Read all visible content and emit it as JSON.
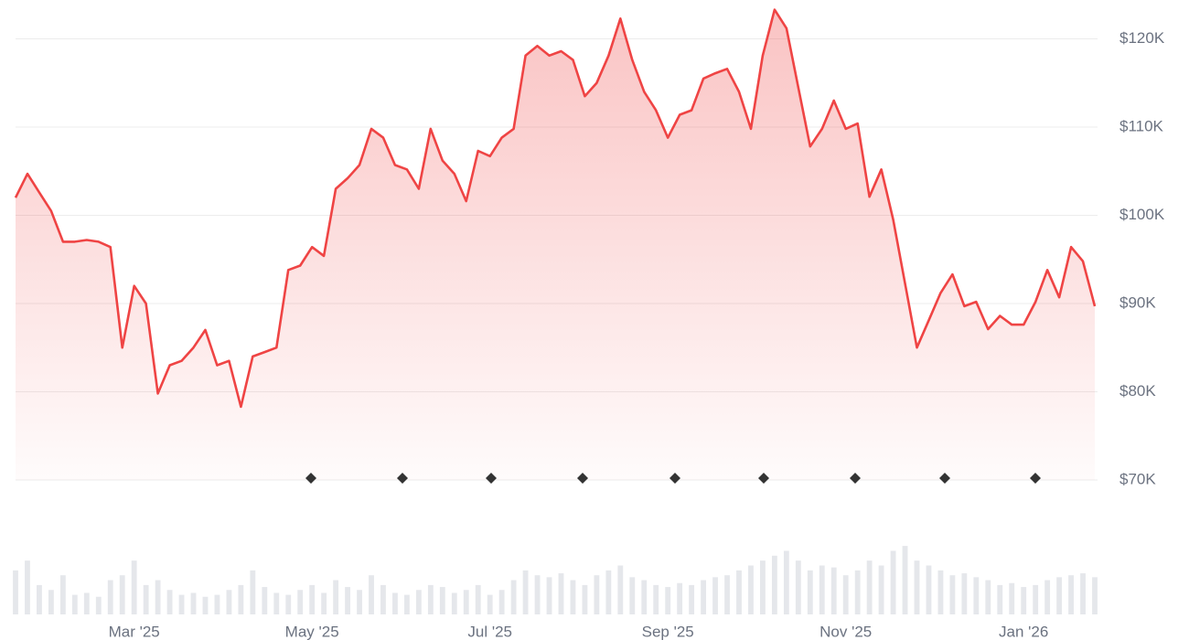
{
  "chart_data": {
    "type": "area-line",
    "color": "#ef4444",
    "volume_color": "#e5e7eb",
    "grid": true,
    "categories": [
      null,
      null,
      null,
      null,
      null,
      null,
      null,
      null,
      null,
      null,
      "Mar '25",
      null,
      null,
      null,
      null,
      null,
      null,
      null,
      null,
      null,
      null,
      null,
      null,
      null,
      null,
      "May '25",
      null,
      null,
      null,
      null,
      null,
      null,
      null,
      null,
      null,
      null,
      null,
      null,
      null,
      null,
      "Jul '25",
      null,
      null,
      null,
      null,
      null,
      null,
      null,
      null,
      null,
      null,
      null,
      null,
      null,
      null,
      "Sep '25",
      null,
      null,
      null,
      null,
      null,
      null,
      null,
      null,
      null,
      null,
      null,
      null,
      null,
      null,
      "Nov '25",
      null,
      null,
      null,
      null,
      null,
      null,
      null,
      null,
      null,
      null,
      null,
      null,
      null,
      null,
      "Jan '26",
      null,
      null,
      null,
      null,
      null,
      null
    ],
    "values": [
      102000,
      104700,
      102600,
      100500,
      97000,
      97000,
      97200,
      97000,
      96400,
      85000,
      92000,
      90000,
      79800,
      83000,
      83500,
      85000,
      87000,
      83000,
      83500,
      78300,
      84000,
      84500,
      85000,
      93800,
      94300,
      96400,
      95400,
      103000,
      104200,
      105700,
      109800,
      108800,
      105700,
      105200,
      103000,
      109800,
      106200,
      104700,
      101600,
      107300,
      106700,
      108800,
      109800,
      118100,
      119200,
      118100,
      118600,
      117600,
      113500,
      115000,
      118100,
      122300,
      117600,
      114000,
      111900,
      108800,
      111400,
      111900,
      115500,
      116100,
      116600,
      114000,
      109800,
      118100,
      123300,
      121200,
      114500,
      107800,
      109800,
      113000,
      109800,
      110400,
      102100,
      105200,
      99500,
      92300,
      85000,
      88100,
      91200,
      93300,
      89700,
      90200,
      87100,
      88600,
      87600,
      87600,
      90200,
      93800,
      90700,
      96400,
      94800,
      89700
    ],
    "volume": [
      45,
      55,
      30,
      25,
      40,
      20,
      22,
      18,
      35,
      40,
      55,
      30,
      35,
      25,
      20,
      22,
      18,
      20,
      25,
      30,
      45,
      28,
      22,
      20,
      25,
      30,
      22,
      35,
      28,
      25,
      40,
      30,
      22,
      20,
      25,
      30,
      28,
      22,
      25,
      30,
      20,
      25,
      35,
      45,
      40,
      38,
      42,
      35,
      30,
      40,
      45,
      50,
      38,
      35,
      30,
      28,
      32,
      30,
      35,
      38,
      40,
      45,
      50,
      55,
      60,
      65,
      55,
      45,
      50,
      48,
      40,
      45,
      55,
      50,
      65,
      70,
      55,
      50,
      45,
      40,
      42,
      38,
      35,
      30,
      32,
      28,
      30,
      35,
      38,
      40,
      42,
      38
    ],
    "volume_lim": [
      0,
      100
    ],
    "ylim": [
      70000,
      124400
    ],
    "yticks": [
      {
        "value": 70000,
        "label": "$70K"
      },
      {
        "value": 80000,
        "label": "$80K"
      },
      {
        "value": 90000,
        "label": "$90K"
      },
      {
        "value": 100000,
        "label": "$100K"
      },
      {
        "value": 110000,
        "label": "$110K"
      },
      {
        "value": 120000,
        "label": "$120K"
      }
    ]
  }
}
